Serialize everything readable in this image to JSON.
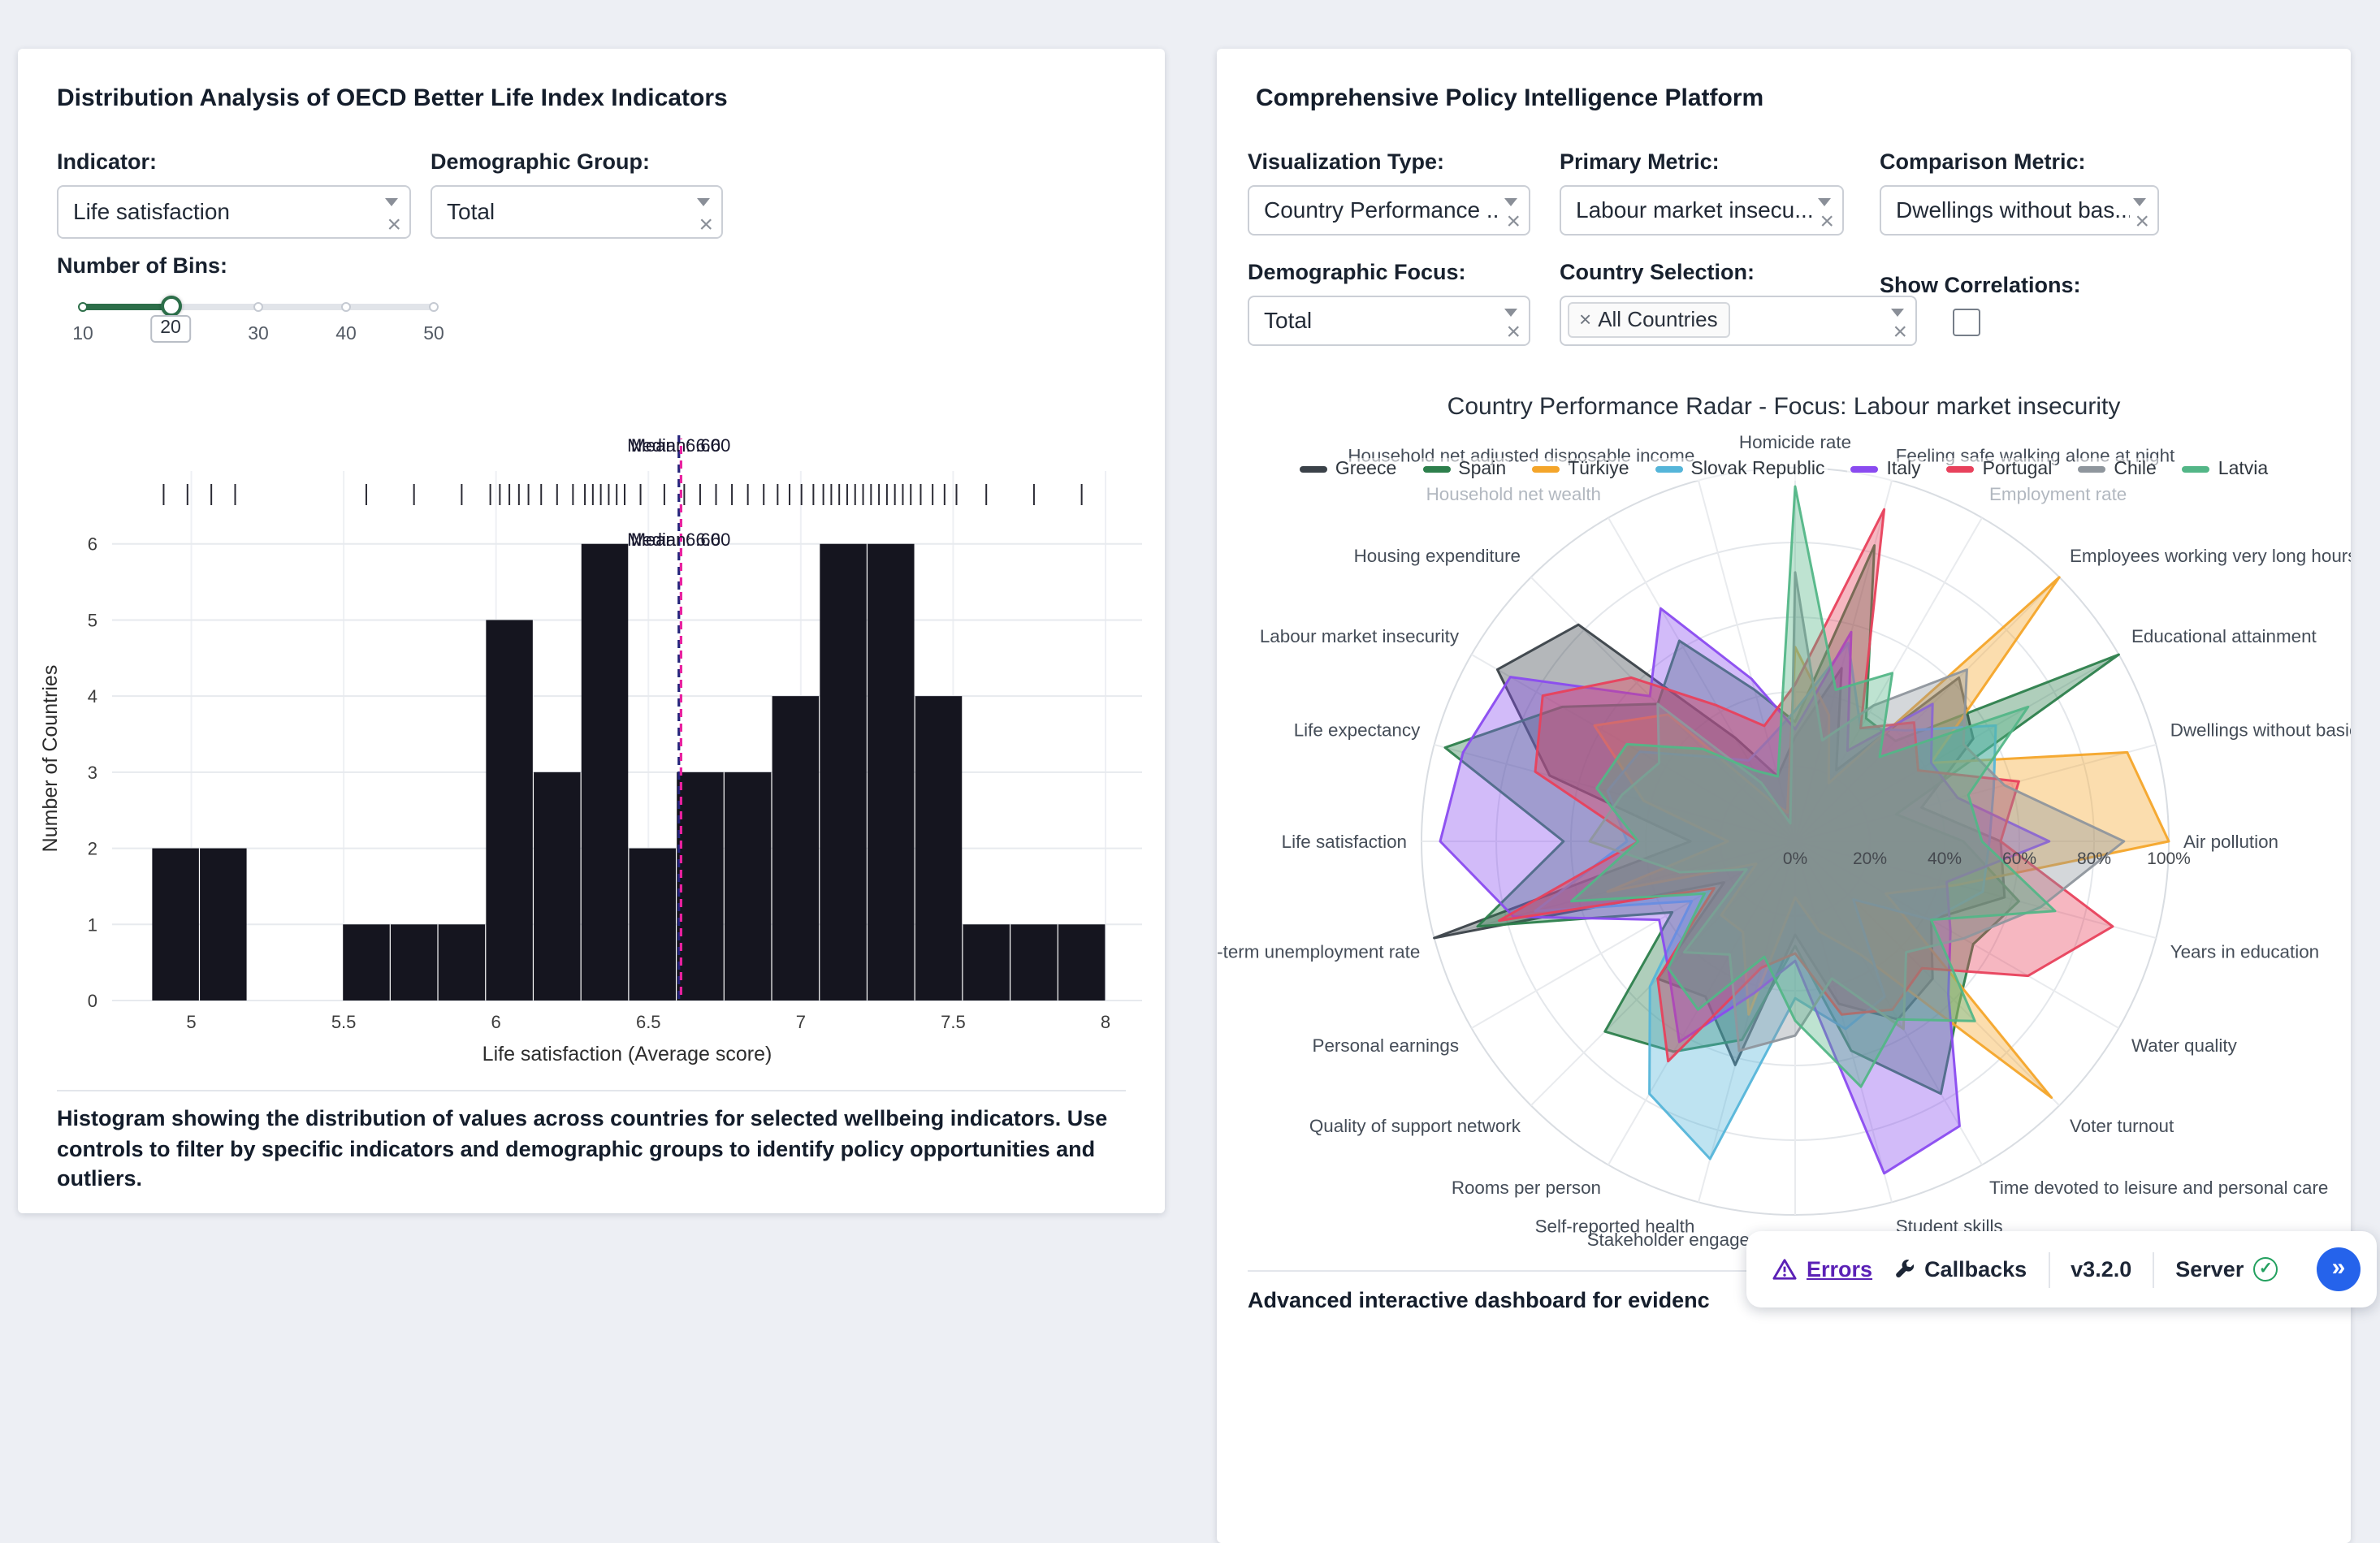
{
  "icons": {
    "clear": "×",
    "chip_remove": "×",
    "check": "✓",
    "expand": "»"
  },
  "left_panel": {
    "title": "Distribution Analysis of OECD Better Life Index Indicators",
    "indicator": {
      "label": "Indicator:",
      "value": "Life satisfaction"
    },
    "demographic": {
      "label": "Demographic Group:",
      "value": "Total"
    },
    "bins": {
      "label": "Number of Bins:",
      "min": 10,
      "max": 50,
      "marks": [
        "10",
        "20",
        "30",
        "40",
        "50"
      ],
      "value": "20"
    },
    "caption": "Histogram showing the distribution of values across countries for selected wellbeing indicators. Use controls to filter by specific indicators and demographic groups to identify policy opportunities and outliers."
  },
  "right_panel": {
    "title": "Comprehensive Policy Intelligence Platform",
    "viz_type": {
      "label": "Visualization Type:",
      "value": "Country Performance ..."
    },
    "primary_metric": {
      "label": "Primary Metric:",
      "value": "Labour market insecu..."
    },
    "comparison_metric": {
      "label": "Comparison Metric:",
      "value": "Dwellings without bas..."
    },
    "demographic_focus": {
      "label": "Demographic Focus:",
      "value": "Total"
    },
    "country_selection": {
      "label": "Country Selection:",
      "chip": "All Countries"
    },
    "show_correlations": {
      "label": "Show Correlations:",
      "checked": false
    },
    "caption": "Advanced interactive dashboard for evidenc"
  },
  "devtools": {
    "errors": "Errors",
    "callbacks": "Callbacks",
    "version": "v3.2.0",
    "server": "Server"
  },
  "chart_data": [
    {
      "type": "bar",
      "subtype": "histogram",
      "title": "",
      "xlabel": "Life satisfaction (Average score)",
      "ylabel": "Number of Countries",
      "xlim": [
        4.74,
        8.12
      ],
      "ylim": [
        0,
        6.36
      ],
      "xticks": [
        5,
        5.5,
        6,
        6.5,
        7,
        7.5,
        8
      ],
      "yticks": [
        0,
        1,
        2,
        3,
        4,
        5,
        6
      ],
      "bin_start": 4.87,
      "bin_width": 0.1565,
      "counts": [
        2,
        2,
        0,
        0,
        1,
        1,
        1,
        5,
        3,
        6,
        2,
        3,
        3,
        4,
        6,
        6,
        4,
        1,
        1,
        1
      ],
      "mean": 6.6,
      "median": 6.6,
      "mean_label": "Mean: 6.60",
      "median_label": "Median: 6.60",
      "bar_color": "#15151f",
      "mean_color": "#e8219f",
      "median_color": "#23237a",
      "grid": true
    },
    {
      "type": "radar",
      "title": "Country Performance Radar - Focus: Labour market insecurity",
      "radial_ticks": [
        "0%",
        "20%",
        "40%",
        "60%",
        "80%",
        "100%"
      ],
      "radial_range": [
        0,
        1
      ],
      "legend_position": "top-center",
      "muted_categories": [
        "Employment rate",
        "Household net wealth"
      ],
      "categories": [
        "Air pollution",
        "Dwellings without basic facilities",
        "Educational attainment",
        "Employees working very long hours",
        "Employment rate",
        "Feeling safe walking alone at night",
        "Homicide rate",
        "Household net adjusted disposable income",
        "Household net wealth",
        "Housing expenditure",
        "Labour market insecurity",
        "Life expectancy",
        "Life satisfaction",
        "Long-term unemployment rate",
        "Personal earnings",
        "Quality of support network",
        "Rooms per person",
        "Self-reported health",
        "Stakeholder engagement for developing regulations",
        "Student skills",
        "Time devoted to leisure and personal care",
        "Voter turnout",
        "Water quality",
        "Years in education"
      ],
      "series": [
        {
          "name": "Greece",
          "color": "#3b4249",
          "values": [
            0.55,
            0.35,
            0.55,
            0.62,
            0.22,
            0.48,
            0.28,
            0.18,
            0.32,
            0.82,
            0.92,
            0.68,
            0.28,
            1.0,
            0.22,
            0.52,
            0.48,
            0.62,
            0.25,
            0.45,
            0.55,
            0.52,
            0.42,
            0.58
          ]
        },
        {
          "name": "Spain",
          "color": "#2d7f4c",
          "values": [
            0.45,
            0.28,
            1.0,
            0.38,
            0.38,
            0.82,
            0.32,
            0.42,
            0.62,
            0.52,
            0.72,
            0.97,
            0.62,
            0.88,
            0.38,
            0.72,
            0.65,
            0.55,
            0.28,
            0.58,
            0.78,
            0.62,
            0.55,
            0.62
          ]
        },
        {
          "name": "Türkiye",
          "color": "#f4a52a",
          "values": [
            1.0,
            0.92,
            0.42,
            1.0,
            0.18,
            0.35,
            0.52,
            0.08,
            0.12,
            0.48,
            0.62,
            0.42,
            0.18,
            0.52,
            0.12,
            0.28,
            0.28,
            0.48,
            0.15,
            0.25,
            0.35,
            0.97,
            0.28,
            0.45
          ]
        },
        {
          "name": "Slovak Republic",
          "color": "#55b5d9",
          "values": [
            0.52,
            0.55,
            0.62,
            0.42,
            0.35,
            0.55,
            0.35,
            0.28,
            0.25,
            0.32,
            0.48,
            0.52,
            0.45,
            0.72,
            0.32,
            0.55,
            0.78,
            0.88,
            0.42,
            0.52,
            0.48,
            0.22,
            0.42,
            0.52
          ]
        },
        {
          "name": "Italy",
          "color": "#8a4bf0",
          "values": [
            0.68,
            0.45,
            0.42,
            0.52,
            0.28,
            0.58,
            0.3,
            0.45,
            0.72,
            0.55,
            0.88,
            0.92,
            0.95,
            0.78,
            0.42,
            0.48,
            0.62,
            0.42,
            0.32,
            0.92,
            0.88,
            0.58,
            0.48,
            0.42
          ]
        },
        {
          "name": "Portugal",
          "color": "#e8415c",
          "values": [
            0.55,
            0.62,
            0.38,
            0.45,
            0.35,
            0.92,
            0.42,
            0.32,
            0.42,
            0.62,
            0.78,
            0.72,
            0.42,
            0.82,
            0.25,
            0.52,
            0.68,
            0.35,
            0.3,
            0.48,
            0.52,
            0.48,
            0.72,
            0.88
          ]
        },
        {
          "name": "Chile",
          "color": "#8f969d",
          "values": [
            0.88,
            0.58,
            0.52,
            0.65,
            0.42,
            0.28,
            0.72,
            0.05,
            0.18,
            0.52,
            0.42,
            0.48,
            0.55,
            0.32,
            0.15,
            0.42,
            0.35,
            0.58,
            0.52,
            0.38,
            0.58,
            0.42,
            0.52,
            0.68
          ]
        },
        {
          "name": "Latvia",
          "color": "#53b687",
          "values": [
            0.5,
            0.48,
            0.72,
            0.32,
            0.52,
            0.42,
            0.95,
            0.18,
            0.22,
            0.35,
            0.52,
            0.55,
            0.42,
            0.62,
            0.28,
            0.48,
            0.52,
            0.32,
            0.48,
            0.68,
            0.55,
            0.68,
            0.42,
            0.72
          ]
        }
      ]
    }
  ]
}
